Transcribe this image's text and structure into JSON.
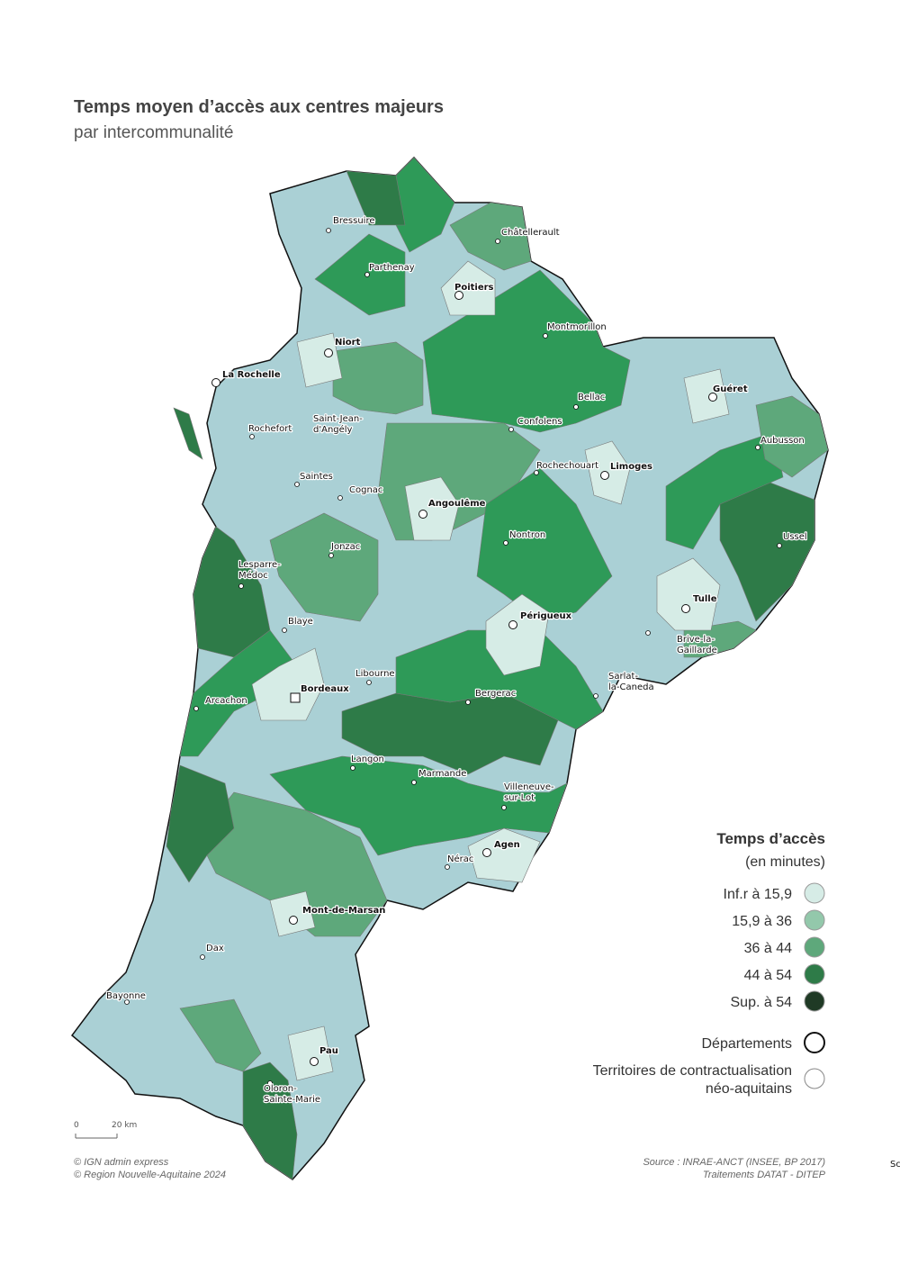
{
  "header": {
    "title": "Temps moyen d’accès aux centres majeurs",
    "subtitle": "par intercommunalité"
  },
  "map": {
    "places": [
      {
        "lines": [
          "Bressuire"
        ],
        "bold": false
      },
      {
        "lines": [
          "Châtellerault"
        ],
        "bold": false
      },
      {
        "lines": [
          "Parthenay"
        ],
        "bold": false
      },
      {
        "lines": [
          "Poitiers"
        ],
        "bold": true
      },
      {
        "lines": [
          "Montmorillon"
        ],
        "bold": false
      },
      {
        "lines": [
          "Niort"
        ],
        "bold": true
      },
      {
        "lines": [
          "La Rochelle"
        ],
        "bold": true
      },
      {
        "lines": [
          "Guéret"
        ],
        "bold": true
      },
      {
        "lines": [
          "Bellac"
        ],
        "bold": false
      },
      {
        "lines": [
          "Saint-Jean-",
          "d'Angély"
        ],
        "bold": false
      },
      {
        "lines": [
          "Rochefort"
        ],
        "bold": false
      },
      {
        "lines": [
          "Confolens"
        ],
        "bold": false
      },
      {
        "lines": [
          "Aubusson"
        ],
        "bold": false
      },
      {
        "lines": [
          "Limoges"
        ],
        "bold": true
      },
      {
        "lines": [
          "Rochechouart"
        ],
        "bold": false
      },
      {
        "lines": [
          "Saintes"
        ],
        "bold": false
      },
      {
        "lines": [
          "Cognac"
        ],
        "bold": false
      },
      {
        "lines": [
          "Angoulême"
        ],
        "bold": true
      },
      {
        "lines": [
          "Nontron"
        ],
        "bold": false
      },
      {
        "lines": [
          "Ussel"
        ],
        "bold": false
      },
      {
        "lines": [
          "Jonzac"
        ],
        "bold": false
      },
      {
        "lines": [
          "Lesparre-",
          "Médoc"
        ],
        "bold": false
      },
      {
        "lines": [
          "Tulle"
        ],
        "bold": true
      },
      {
        "lines": [
          "Périgueux"
        ],
        "bold": true
      },
      {
        "lines": [
          "Blaye"
        ],
        "bold": false
      },
      {
        "lines": [
          "Brive-la-",
          "Gaillarde"
        ],
        "bold": false
      },
      {
        "lines": [
          "Libourne"
        ],
        "bold": false
      },
      {
        "lines": [
          "Sarlat-",
          "la-Caneda"
        ],
        "bold": false
      },
      {
        "lines": [
          "Bordeaux"
        ],
        "bold": true
      },
      {
        "lines": [
          "Bergerac"
        ],
        "bold": false
      },
      {
        "lines": [
          "Arcachon"
        ],
        "bold": false
      },
      {
        "lines": [
          "Langon"
        ],
        "bold": false
      },
      {
        "lines": [
          "Marmande"
        ],
        "bold": false
      },
      {
        "lines": [
          "Villeneuve-",
          "sur-Lot"
        ],
        "bold": false
      },
      {
        "lines": [
          "Agen"
        ],
        "bold": true
      },
      {
        "lines": [
          "Nérac"
        ],
        "bold": false
      },
      {
        "lines": [
          "Mont-de-Marsan"
        ],
        "bold": true
      },
      {
        "lines": [
          "Dax"
        ],
        "bold": false
      },
      {
        "lines": [
          "Bayonne"
        ],
        "bold": false
      },
      {
        "lines": [
          "Pau"
        ],
        "bold": true
      },
      {
        "lines": [
          "Oloron-",
          "Sainte-Marie"
        ],
        "bold": false
      }
    ]
  },
  "legend": {
    "title": "Temps d’accès",
    "subtitle": "(en minutes)",
    "classes": [
      {
        "label": "Inf.r à 15,9",
        "color": "#d6ece6"
      },
      {
        "label": "15,9 à 36",
        "color": "#93c8ab"
      },
      {
        "label": "36 à 44",
        "color": "#5ea87b"
      },
      {
        "label": "44 à 54",
        "color": "#2e7b48"
      },
      {
        "label": "Sup. à 54",
        "color": "#1f3a25"
      }
    ],
    "boundaries": [
      {
        "lines": [
          "Départements"
        ],
        "stroke": "#111111"
      },
      {
        "lines": [
          "Territoires de contractualisation",
          "néo-aquitains"
        ],
        "stroke": "#888888"
      }
    ]
  },
  "scale": [
    "0",
    "20 km"
  ],
  "credits": [
    "© IGN admin express",
    "© Region Nouvelle-Aquitaine 2024"
  ],
  "source": [
    "Source : INRAE-ANCT (INSEE, BP 2017)",
    "Traitements DATAT - DITEP"
  ],
  "clipped_text": "Sc"
}
